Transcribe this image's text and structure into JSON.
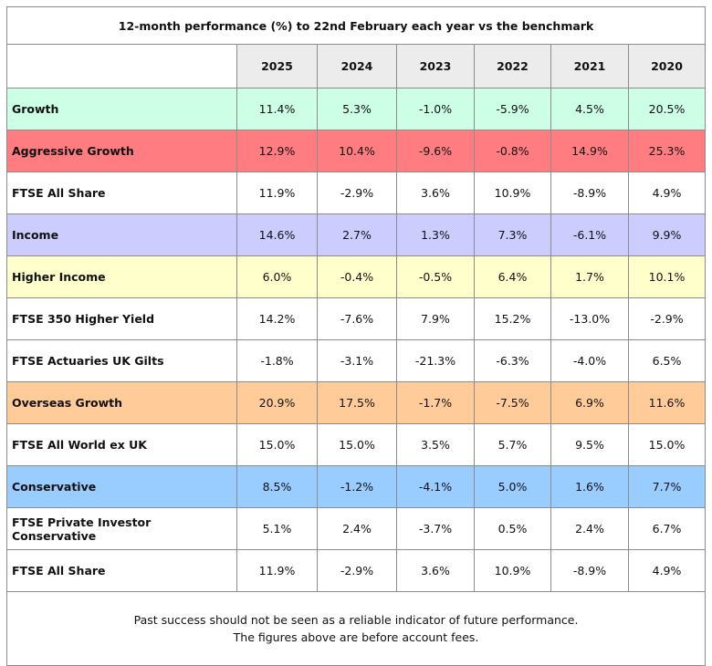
{
  "title": "12-month performance (%) to 22nd February each year vs the benchmark",
  "years": [
    "2025",
    "2024",
    "2023",
    "2022",
    "2021",
    "2020"
  ],
  "rows": [
    {
      "name": "Growth",
      "bg": "#ccffe6",
      "values": [
        "11.4%",
        "5.3%",
        "-1.0%",
        "-5.9%",
        "4.5%",
        "20.5%"
      ]
    },
    {
      "name": "Aggressive Growth",
      "bg": "#ff7c80",
      "values": [
        "12.9%",
        "10.4%",
        "-9.6%",
        "-0.8%",
        "14.9%",
        "25.3%"
      ]
    },
    {
      "name": "FTSE All Share",
      "bg": "#ffffff",
      "values": [
        "11.9%",
        "-2.9%",
        "3.6%",
        "10.9%",
        "-8.9%",
        "4.9%"
      ]
    },
    {
      "name": "Income",
      "bg": "#ccccff",
      "values": [
        "14.6%",
        "2.7%",
        "1.3%",
        "7.3%",
        "-6.1%",
        "9.9%"
      ]
    },
    {
      "name": "Higher Income",
      "bg": "#ffffcc",
      "values": [
        "6.0%",
        "-0.4%",
        "-0.5%",
        "6.4%",
        "1.7%",
        "10.1%"
      ]
    },
    {
      "name": "FTSE 350 Higher Yield",
      "bg": "#ffffff",
      "values": [
        "14.2%",
        "-7.6%",
        "7.9%",
        "15.2%",
        "-13.0%",
        "-2.9%"
      ]
    },
    {
      "name": "FTSE Actuaries UK Gilts",
      "bg": "#ffffff",
      "values": [
        "-1.8%",
        "-3.1%",
        "-21.3%",
        "-6.3%",
        "-4.0%",
        "6.5%"
      ]
    },
    {
      "name": "Overseas Growth",
      "bg": "#ffcc99",
      "values": [
        "20.9%",
        "17.5%",
        "-1.7%",
        "-7.5%",
        "6.9%",
        "11.6%"
      ]
    },
    {
      "name": "FTSE All World ex UK",
      "bg": "#ffffff",
      "values": [
        "15.0%",
        "15.0%",
        "3.5%",
        "5.7%",
        "9.5%",
        "15.0%"
      ]
    },
    {
      "name": "Conservative",
      "bg": "#99ccff",
      "values": [
        "8.5%",
        "-1.2%",
        "-4.1%",
        "5.0%",
        "1.6%",
        "7.7%"
      ]
    },
    {
      "name": "FTSE Private Investor Conservative",
      "bg": "#ffffff",
      "values": [
        "5.1%",
        "2.4%",
        "-3.7%",
        "0.5%",
        "2.4%",
        "6.7%"
      ]
    },
    {
      "name": "FTSE All Share",
      "bg": "#ffffff",
      "values": [
        "11.9%",
        "-2.9%",
        "3.6%",
        "10.9%",
        "-8.9%",
        "4.9%"
      ]
    }
  ],
  "footer": {
    "line1": "Past success should not be seen as a reliable indicator of future performance.",
    "line2": "The figures above are before account fees."
  }
}
